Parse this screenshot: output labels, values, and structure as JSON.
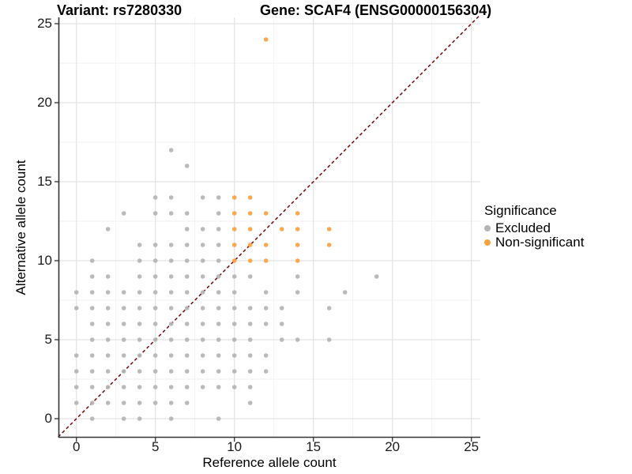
{
  "header": {
    "variant_title": "Variant: rs7280330",
    "gene_title": "Gene: SCAF4 (ENSG00000156304)"
  },
  "chart_data": {
    "type": "scatter",
    "xlabel": "Reference allele count",
    "ylabel": "Alternative allele count",
    "xlim": [
      -1.15,
      25.6
    ],
    "ylim": [
      -1.2,
      25.5
    ],
    "xticks": [
      0,
      5,
      10,
      15,
      20,
      25
    ],
    "yticks": [
      0,
      5,
      10,
      15,
      20,
      25
    ],
    "minor_gridlines": [
      2.5,
      7.5,
      12.5,
      17.5,
      22.5
    ],
    "grid": "major+minor",
    "identity_line": {
      "type": "y=x",
      "style": "dashed",
      "color": "#7B1113"
    },
    "legend": {
      "title": "Significance",
      "position": "right"
    },
    "series": [
      {
        "name": "Excluded",
        "color": "#B4B4B4",
        "points": [
          [
            6,
            17
          ],
          [
            7,
            16
          ],
          [
            5,
            14
          ],
          [
            6,
            14
          ],
          [
            8,
            14
          ],
          [
            9,
            14
          ],
          [
            3,
            13
          ],
          [
            5,
            13
          ],
          [
            6,
            13
          ],
          [
            7,
            13
          ],
          [
            9,
            13
          ],
          [
            2,
            12
          ],
          [
            7,
            12
          ],
          [
            8,
            12
          ],
          [
            9,
            12
          ],
          [
            4,
            11
          ],
          [
            5,
            11
          ],
          [
            6,
            11
          ],
          [
            7,
            11
          ],
          [
            8,
            11
          ],
          [
            9,
            11
          ],
          [
            1,
            10
          ],
          [
            4,
            10
          ],
          [
            5,
            10
          ],
          [
            6,
            10
          ],
          [
            7,
            10
          ],
          [
            8,
            10
          ],
          [
            9,
            10
          ],
          [
            1,
            9
          ],
          [
            2,
            9
          ],
          [
            4,
            9
          ],
          [
            5,
            9
          ],
          [
            6,
            9
          ],
          [
            7,
            9
          ],
          [
            8,
            9
          ],
          [
            9,
            9
          ],
          [
            10,
            9
          ],
          [
            11,
            9
          ],
          [
            14,
            9
          ],
          [
            19,
            9
          ],
          [
            0,
            8
          ],
          [
            1,
            8
          ],
          [
            2,
            8
          ],
          [
            3,
            8
          ],
          [
            4,
            8
          ],
          [
            5,
            8
          ],
          [
            6,
            8
          ],
          [
            7,
            8
          ],
          [
            8,
            8
          ],
          [
            9,
            8
          ],
          [
            10,
            8
          ],
          [
            12,
            8
          ],
          [
            14,
            8
          ],
          [
            17,
            8
          ],
          [
            0,
            7
          ],
          [
            1,
            7
          ],
          [
            2,
            7
          ],
          [
            3,
            7
          ],
          [
            4,
            7
          ],
          [
            5,
            7
          ],
          [
            6,
            7
          ],
          [
            7,
            7
          ],
          [
            8,
            7
          ],
          [
            9,
            7
          ],
          [
            10,
            7
          ],
          [
            11,
            7
          ],
          [
            12,
            7
          ],
          [
            13,
            7
          ],
          [
            16,
            7
          ],
          [
            1,
            6
          ],
          [
            2,
            6
          ],
          [
            3,
            6
          ],
          [
            4,
            6
          ],
          [
            5,
            6
          ],
          [
            6,
            6
          ],
          [
            7,
            6
          ],
          [
            8,
            6
          ],
          [
            9,
            6
          ],
          [
            10,
            6
          ],
          [
            11,
            6
          ],
          [
            12,
            6
          ],
          [
            13,
            6
          ],
          [
            1,
            5
          ],
          [
            2,
            5
          ],
          [
            3,
            5
          ],
          [
            4,
            5
          ],
          [
            5,
            5
          ],
          [
            6,
            5
          ],
          [
            7,
            5
          ],
          [
            8,
            5
          ],
          [
            9,
            5
          ],
          [
            10,
            5
          ],
          [
            11,
            5
          ],
          [
            13,
            5
          ],
          [
            14,
            5
          ],
          [
            16,
            5
          ],
          [
            0,
            4
          ],
          [
            1,
            4
          ],
          [
            2,
            4
          ],
          [
            3,
            4
          ],
          [
            4,
            4
          ],
          [
            5,
            4
          ],
          [
            6,
            4
          ],
          [
            7,
            4
          ],
          [
            8,
            4
          ],
          [
            9,
            4
          ],
          [
            10,
            4
          ],
          [
            11,
            4
          ],
          [
            12,
            4
          ],
          [
            0,
            3
          ],
          [
            1,
            3
          ],
          [
            2,
            3
          ],
          [
            3,
            3
          ],
          [
            4,
            3
          ],
          [
            5,
            3
          ],
          [
            6,
            3
          ],
          [
            7,
            3
          ],
          [
            8,
            3
          ],
          [
            9,
            3
          ],
          [
            10,
            3
          ],
          [
            11,
            3
          ],
          [
            12,
            3
          ],
          [
            0,
            2
          ],
          [
            1,
            2
          ],
          [
            2,
            2
          ],
          [
            3,
            2
          ],
          [
            4,
            2
          ],
          [
            5,
            2
          ],
          [
            6,
            2
          ],
          [
            7,
            2
          ],
          [
            8,
            2
          ],
          [
            9,
            2
          ],
          [
            10,
            2
          ],
          [
            11,
            2
          ],
          [
            0,
            1
          ],
          [
            1,
            1
          ],
          [
            2,
            1
          ],
          [
            3,
            1
          ],
          [
            4,
            1
          ],
          [
            5,
            1
          ],
          [
            6,
            1
          ],
          [
            7,
            1
          ],
          [
            11,
            1
          ],
          [
            1,
            0
          ],
          [
            3,
            0
          ],
          [
            4,
            0
          ],
          [
            6,
            0
          ],
          [
            9,
            0
          ]
        ]
      },
      {
        "name": "Non-significant",
        "color": "#F9A23C",
        "points": [
          [
            12,
            24
          ],
          [
            10,
            14
          ],
          [
            11,
            14
          ],
          [
            10,
            13
          ],
          [
            11,
            13
          ],
          [
            12,
            13
          ],
          [
            14,
            13
          ],
          [
            10,
            12
          ],
          [
            11,
            12
          ],
          [
            13,
            12
          ],
          [
            14,
            12
          ],
          [
            16,
            12
          ],
          [
            10,
            11
          ],
          [
            11,
            11
          ],
          [
            12,
            11
          ],
          [
            14,
            11
          ],
          [
            16,
            11
          ],
          [
            10,
            10
          ],
          [
            11,
            10
          ],
          [
            12,
            10
          ],
          [
            14,
            10
          ]
        ]
      }
    ]
  }
}
